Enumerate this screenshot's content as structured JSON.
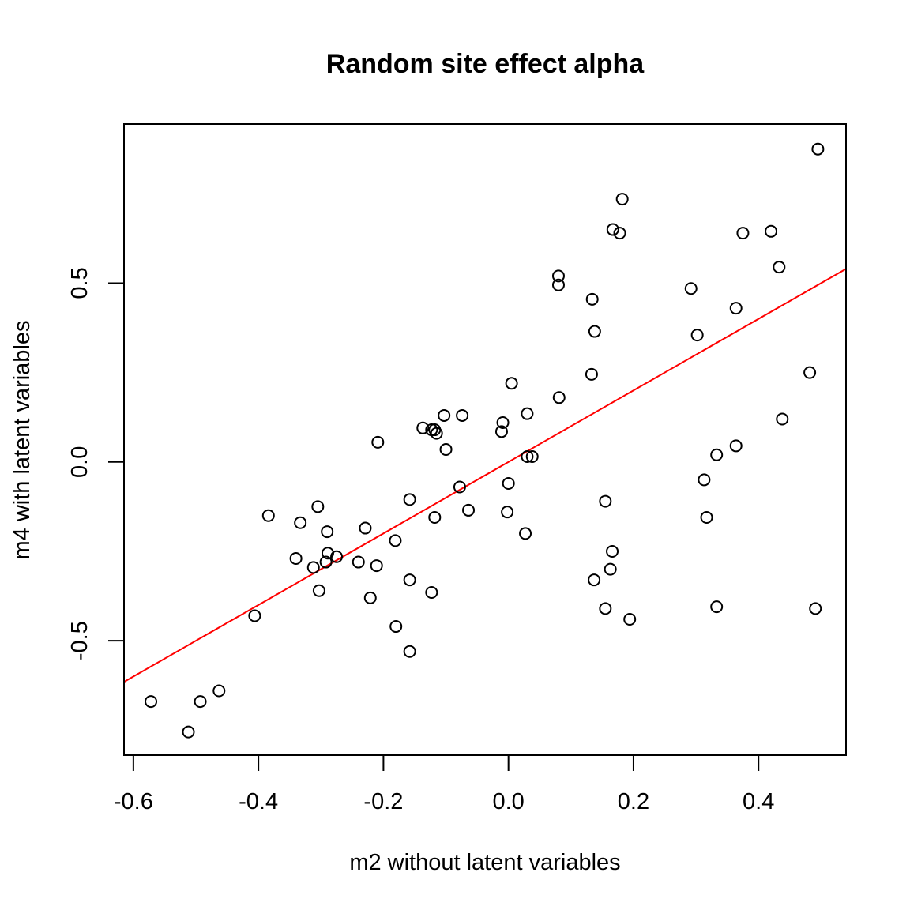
{
  "chart_data": {
    "type": "scatter",
    "title": "Random site effect alpha",
    "xlabel": "m2 without latent variables",
    "ylabel": "m4 with latent variables",
    "xlim": [
      -0.615,
      0.54
    ],
    "ylim": [
      -0.82,
      0.945
    ],
    "x_ticks": [
      -0.6,
      -0.4,
      -0.2,
      0.0,
      0.2,
      0.4
    ],
    "x_tick_labels": [
      "-0.6",
      "-0.4",
      "-0.2",
      "0.0",
      "0.2",
      "0.4"
    ],
    "y_ticks": [
      -0.5,
      0.0,
      0.5
    ],
    "y_tick_labels": [
      "-0.5",
      "0.0",
      "0.5"
    ],
    "grid": false,
    "legend": "none",
    "point_color": "#000000",
    "line_color": "#ff0000",
    "fit_line": {
      "intercept": 0.0,
      "slope": 1.0
    },
    "points": [
      {
        "x": 0.495,
        "y": 0.875
      },
      {
        "x": 0.182,
        "y": 0.735
      },
      {
        "x": 0.167,
        "y": 0.65
      },
      {
        "x": 0.178,
        "y": 0.64
      },
      {
        "x": 0.375,
        "y": 0.64
      },
      {
        "x": 0.42,
        "y": 0.645
      },
      {
        "x": 0.433,
        "y": 0.545
      },
      {
        "x": 0.08,
        "y": 0.52
      },
      {
        "x": 0.08,
        "y": 0.495
      },
      {
        "x": 0.292,
        "y": 0.485
      },
      {
        "x": 0.134,
        "y": 0.455
      },
      {
        "x": 0.364,
        "y": 0.43
      },
      {
        "x": 0.138,
        "y": 0.365
      },
      {
        "x": 0.302,
        "y": 0.355
      },
      {
        "x": 0.482,
        "y": 0.25
      },
      {
        "x": 0.133,
        "y": 0.245
      },
      {
        "x": 0.005,
        "y": 0.22
      },
      {
        "x": 0.081,
        "y": 0.18
      },
      {
        "x": 0.03,
        "y": 0.135
      },
      {
        "x": -0.103,
        "y": 0.13
      },
      {
        "x": -0.074,
        "y": 0.13
      },
      {
        "x": 0.438,
        "y": 0.12
      },
      {
        "x": -0.009,
        "y": 0.11
      },
      {
        "x": -0.137,
        "y": 0.095
      },
      {
        "x": -0.123,
        "y": 0.09
      },
      {
        "x": -0.118,
        "y": 0.09
      },
      {
        "x": -0.115,
        "y": 0.08
      },
      {
        "x": -0.011,
        "y": 0.085
      },
      {
        "x": -0.209,
        "y": 0.055
      },
      {
        "x": 0.364,
        "y": 0.045
      },
      {
        "x": -0.1,
        "y": 0.035
      },
      {
        "x": 0.333,
        "y": 0.02
      },
      {
        "x": 0.03,
        "y": 0.015
      },
      {
        "x": 0.038,
        "y": 0.015
      },
      {
        "x": 0.313,
        "y": -0.05
      },
      {
        "x": 0.0,
        "y": -0.06
      },
      {
        "x": -0.078,
        "y": -0.07
      },
      {
        "x": 0.155,
        "y": -0.11
      },
      {
        "x": -0.158,
        "y": -0.105
      },
      {
        "x": -0.305,
        "y": -0.125
      },
      {
        "x": -0.064,
        "y": -0.135
      },
      {
        "x": -0.002,
        "y": -0.14
      },
      {
        "x": -0.384,
        "y": -0.15
      },
      {
        "x": -0.118,
        "y": -0.155
      },
      {
        "x": 0.317,
        "y": -0.155
      },
      {
        "x": -0.333,
        "y": -0.17
      },
      {
        "x": -0.229,
        "y": -0.185
      },
      {
        "x": -0.29,
        "y": -0.195
      },
      {
        "x": 0.027,
        "y": -0.2
      },
      {
        "x": -0.181,
        "y": -0.22
      },
      {
        "x": 0.166,
        "y": -0.25
      },
      {
        "x": -0.289,
        "y": -0.255
      },
      {
        "x": -0.275,
        "y": -0.265
      },
      {
        "x": -0.34,
        "y": -0.27
      },
      {
        "x": -0.292,
        "y": -0.28
      },
      {
        "x": -0.24,
        "y": -0.28
      },
      {
        "x": -0.211,
        "y": -0.29
      },
      {
        "x": -0.312,
        "y": -0.295
      },
      {
        "x": 0.163,
        "y": -0.3
      },
      {
        "x": 0.137,
        "y": -0.33
      },
      {
        "x": -0.158,
        "y": -0.33
      },
      {
        "x": -0.303,
        "y": -0.36
      },
      {
        "x": -0.123,
        "y": -0.365
      },
      {
        "x": -0.221,
        "y": -0.38
      },
      {
        "x": 0.333,
        "y": -0.405
      },
      {
        "x": 0.155,
        "y": -0.41
      },
      {
        "x": 0.491,
        "y": -0.41
      },
      {
        "x": -0.406,
        "y": -0.43
      },
      {
        "x": 0.194,
        "y": -0.44
      },
      {
        "x": -0.18,
        "y": -0.46
      },
      {
        "x": -0.158,
        "y": -0.53
      },
      {
        "x": -0.463,
        "y": -0.64
      },
      {
        "x": -0.572,
        "y": -0.67
      },
      {
        "x": -0.493,
        "y": -0.67
      },
      {
        "x": -0.512,
        "y": -0.755
      }
    ]
  }
}
